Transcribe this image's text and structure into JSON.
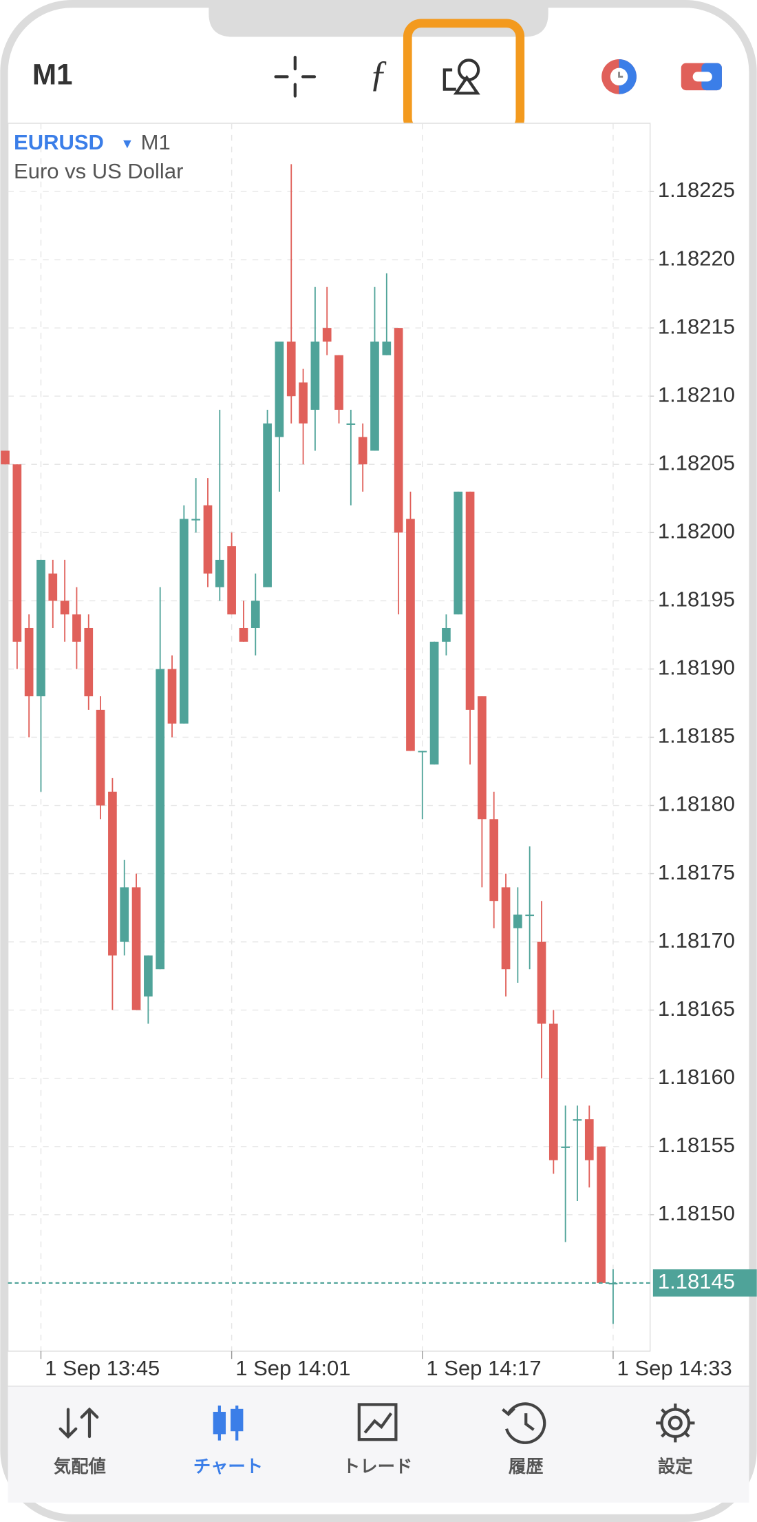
{
  "header": {
    "timeframe": "M1"
  },
  "chart_data": {
    "type": "candlestick",
    "symbol": "EURUSD",
    "timeframe": "M1",
    "description": "Euro vs US Dollar",
    "categories": [
      null,
      null,
      null,
      "1 Sep 13:45",
      null,
      null,
      null,
      null,
      null,
      null,
      null,
      null,
      null,
      null,
      null,
      null,
      null,
      null,
      null,
      "1 Sep 14:01",
      null,
      null,
      null,
      null,
      null,
      null,
      null,
      null,
      null,
      null,
      null,
      null,
      null,
      null,
      null,
      "1 Sep 14:17",
      null,
      null,
      null,
      null,
      null,
      null,
      null,
      null,
      null,
      null,
      null,
      null,
      null,
      null,
      null,
      "1 Sep 14:33"
    ],
    "open": [
      1.18206,
      1.18205,
      1.18193,
      1.18188,
      1.18197,
      1.18195,
      1.18194,
      1.18193,
      1.18187,
      1.18181,
      1.1817,
      1.18174,
      1.18166,
      1.18168,
      1.1819,
      1.18186,
      1.18201,
      1.18202,
      1.18196,
      1.18199,
      1.18193,
      1.18193,
      1.18196,
      1.18207,
      1.18214,
      1.18211,
      1.18209,
      1.18215,
      1.18213,
      1.18208,
      1.18207,
      1.18206,
      1.18213,
      1.18215,
      1.18201,
      1.18184,
      1.18183,
      1.18192,
      1.18194,
      1.18203,
      1.18188,
      1.18179,
      1.18174,
      1.18171,
      1.18172,
      1.1817,
      1.18164,
      1.18155,
      1.18157,
      1.18157,
      1.18155,
      1.18145
    ],
    "high": [
      1.18206,
      1.18205,
      1.18194,
      1.18198,
      1.18198,
      1.18198,
      1.18196,
      1.18194,
      1.18188,
      1.18182,
      1.18176,
      1.18175,
      1.18169,
      1.18196,
      1.18191,
      1.18202,
      1.18204,
      1.18204,
      1.18209,
      1.182,
      1.18195,
      1.18197,
      1.18209,
      1.18214,
      1.18227,
      1.18212,
      1.18218,
      1.18218,
      1.18213,
      1.18209,
      1.18208,
      1.18218,
      1.18219,
      1.18215,
      1.18203,
      1.18184,
      1.18192,
      1.18194,
      1.18203,
      1.18203,
      1.18188,
      1.18181,
      1.18175,
      1.18174,
      1.18177,
      1.18173,
      1.18165,
      1.18158,
      1.18158,
      1.18158,
      1.18155,
      1.18146
    ],
    "low": [
      1.18205,
      1.1819,
      1.18185,
      1.18181,
      1.18193,
      1.18192,
      1.1819,
      1.18187,
      1.18179,
      1.18165,
      1.18169,
      1.18165,
      1.18164,
      1.18168,
      1.18185,
      1.18186,
      1.182,
      1.18196,
      1.18195,
      1.18194,
      1.18192,
      1.18191,
      1.18196,
      1.18203,
      1.18208,
      1.18205,
      1.18206,
      1.18213,
      1.18208,
      1.18202,
      1.18203,
      1.18206,
      1.18213,
      1.18194,
      1.18184,
      1.18179,
      1.18183,
      1.18191,
      1.18194,
      1.18183,
      1.18174,
      1.18171,
      1.18166,
      1.18167,
      1.18168,
      1.1816,
      1.18153,
      1.18148,
      1.18151,
      1.18152,
      1.18145,
      1.18142
    ],
    "close": [
      1.18205,
      1.18192,
      1.18188,
      1.18198,
      1.18195,
      1.18194,
      1.18192,
      1.18188,
      1.1818,
      1.18169,
      1.18174,
      1.18165,
      1.18169,
      1.1819,
      1.18186,
      1.18201,
      1.18201,
      1.18197,
      1.18198,
      1.18194,
      1.18192,
      1.18195,
      1.18208,
      1.18214,
      1.1821,
      1.18208,
      1.18214,
      1.18214,
      1.18209,
      1.18208,
      1.18205,
      1.18214,
      1.18214,
      1.182,
      1.18184,
      1.18184,
      1.18192,
      1.18193,
      1.18203,
      1.18187,
      1.18179,
      1.18173,
      1.18168,
      1.18172,
      1.18172,
      1.18164,
      1.18154,
      1.18155,
      1.18157,
      1.18154,
      1.18145,
      1.18145
    ],
    "ylim": [
      1.1814,
      1.1823
    ],
    "yticks": [
      1.18225,
      {
        "value": 1.1822,
        "label": "1.18220"
      },
      1.18215,
      {
        "value": 1.1821,
        "label": "1.18210"
      },
      1.18205,
      {
        "value": 1.182,
        "label": "1.18200"
      },
      1.18195,
      {
        "value": 1.1819,
        "label": "1.18190"
      },
      1.18185,
      {
        "value": 1.1818,
        "label": "1.18180"
      },
      1.18175,
      {
        "value": 1.1817,
        "label": "1.18170"
      },
      1.18165,
      {
        "value": 1.1816,
        "label": "1.18160"
      },
      1.18155,
      {
        "value": 1.1815,
        "label": "1.18150"
      }
    ],
    "current_price": 1.18145,
    "up_color": "#4fa399",
    "down_color": "#e0605a",
    "grid": true
  },
  "tabs": [
    {
      "label": "気配値"
    },
    {
      "label": "チャート"
    },
    {
      "label": "トレード"
    },
    {
      "label": "履歴"
    },
    {
      "label": "設定"
    }
  ],
  "active_tab": 1
}
